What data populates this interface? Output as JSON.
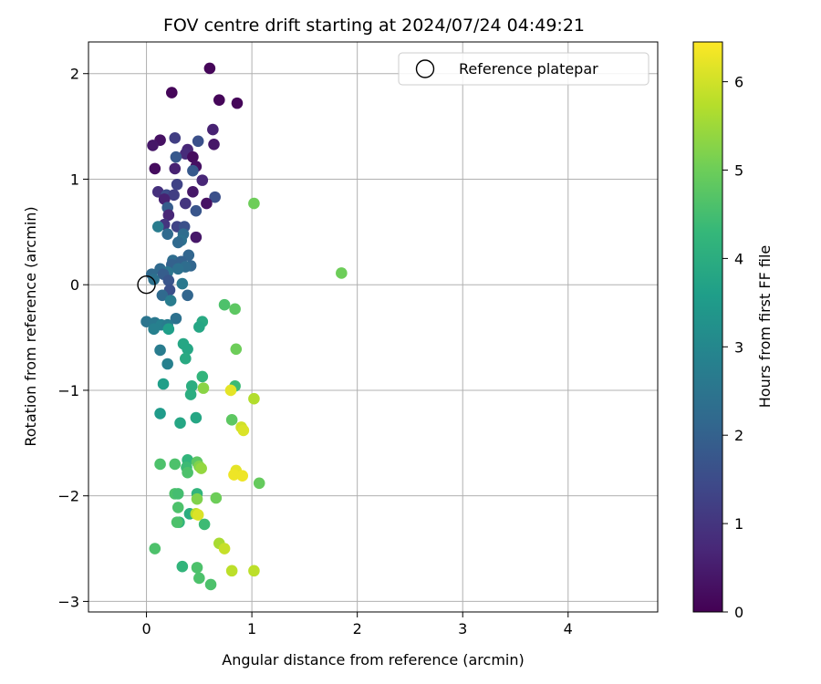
{
  "chart_data": {
    "type": "scatter",
    "title": "FOV centre drift starting at 2024/07/24 04:49:21",
    "xlabel": "Angular distance from reference (arcmin)",
    "ylabel": "Rotation from reference (arcmin)",
    "xlim": [
      -0.55,
      4.85
    ],
    "ylim": [
      -3.1,
      2.3
    ],
    "xticks": [
      0,
      1,
      2,
      3,
      4
    ],
    "yticks": [
      -3,
      -2,
      -1,
      0,
      1,
      2
    ],
    "xtick_labels": [
      "0",
      "1",
      "2",
      "3",
      "4"
    ],
    "ytick_labels": [
      "−3",
      "−2",
      "−1",
      "0",
      "1",
      "2"
    ],
    "grid": true,
    "legend": {
      "position": "top-right",
      "entries": [
        {
          "label": "Reference platepar",
          "marker": "open-circle"
        }
      ]
    },
    "reference_point": [
      0,
      0
    ],
    "colorbar": {
      "label": "Hours from first FF file",
      "range": [
        0,
        6.45
      ],
      "ticks": [
        0,
        1,
        2,
        3,
        4,
        5,
        6
      ],
      "tick_labels": [
        "0",
        "1",
        "2",
        "3",
        "4",
        "5",
        "6"
      ],
      "colormap": "viridis",
      "stops": [
        "#440154",
        "#482878",
        "#3e4989",
        "#31688e",
        "#26828e",
        "#1f9e89",
        "#35b779",
        "#6ece58",
        "#b5de2b",
        "#fde725"
      ]
    },
    "points": [
      {
        "x": 0.6,
        "y": 2.05,
        "h": 0.1
      },
      {
        "x": 0.24,
        "y": 1.82,
        "h": 0.1
      },
      {
        "x": 0.69,
        "y": 1.75,
        "h": 0.1
      },
      {
        "x": 0.86,
        "y": 1.72,
        "h": 0.1
      },
      {
        "x": 0.63,
        "y": 1.47,
        "h": 0.6
      },
      {
        "x": 0.27,
        "y": 1.39,
        "h": 1.2
      },
      {
        "x": 0.13,
        "y": 1.37,
        "h": 0.3
      },
      {
        "x": 0.49,
        "y": 1.36,
        "h": 1.6
      },
      {
        "x": 0.06,
        "y": 1.32,
        "h": 0.4
      },
      {
        "x": 0.64,
        "y": 1.33,
        "h": 0.4
      },
      {
        "x": 0.39,
        "y": 1.28,
        "h": 0.7
      },
      {
        "x": 0.37,
        "y": 1.24,
        "h": 0.8
      },
      {
        "x": 0.28,
        "y": 1.21,
        "h": 1.8
      },
      {
        "x": 0.44,
        "y": 1.21,
        "h": 0.2
      },
      {
        "x": 0.47,
        "y": 1.12,
        "h": 0.3
      },
      {
        "x": 0.08,
        "y": 1.1,
        "h": 0.2
      },
      {
        "x": 0.27,
        "y": 1.1,
        "h": 0.6
      },
      {
        "x": 0.44,
        "y": 1.08,
        "h": 1.8
      },
      {
        "x": 0.53,
        "y": 0.99,
        "h": 0.7
      },
      {
        "x": 0.29,
        "y": 0.95,
        "h": 1.3
      },
      {
        "x": 0.11,
        "y": 0.88,
        "h": 0.9
      },
      {
        "x": 0.19,
        "y": 0.85,
        "h": 1.5
      },
      {
        "x": 0.44,
        "y": 0.88,
        "h": 0.4
      },
      {
        "x": 0.26,
        "y": 0.85,
        "h": 1.2
      },
      {
        "x": 0.65,
        "y": 0.83,
        "h": 1.6
      },
      {
        "x": 0.17,
        "y": 0.81,
        "h": 0.6
      },
      {
        "x": 0.37,
        "y": 0.77,
        "h": 1.0
      },
      {
        "x": 0.57,
        "y": 0.77,
        "h": 0.3
      },
      {
        "x": 0.2,
        "y": 0.73,
        "h": 1.9
      },
      {
        "x": 0.47,
        "y": 0.7,
        "h": 1.7
      },
      {
        "x": 0.21,
        "y": 0.66,
        "h": 0.7
      },
      {
        "x": 0.17,
        "y": 0.57,
        "h": 1.0
      },
      {
        "x": 0.11,
        "y": 0.55,
        "h": 2.7
      },
      {
        "x": 0.29,
        "y": 0.55,
        "h": 1.3
      },
      {
        "x": 0.36,
        "y": 0.55,
        "h": 1.6
      },
      {
        "x": 0.2,
        "y": 0.48,
        "h": 2.2
      },
      {
        "x": 0.35,
        "y": 0.48,
        "h": 2.3
      },
      {
        "x": 0.47,
        "y": 0.45,
        "h": 0.4
      },
      {
        "x": 0.33,
        "y": 0.42,
        "h": 2.4
      },
      {
        "x": 0.3,
        "y": 0.4,
        "h": 2.2
      },
      {
        "x": 0.4,
        "y": 0.28,
        "h": 2.1
      },
      {
        "x": 0.25,
        "y": 0.23,
        "h": 2.3
      },
      {
        "x": 0.33,
        "y": 0.22,
        "h": 2.0
      },
      {
        "x": 0.24,
        "y": 0.19,
        "h": 2.0
      },
      {
        "x": 0.42,
        "y": 0.18,
        "h": 2.1
      },
      {
        "x": 0.37,
        "y": 0.17,
        "h": 2.3
      },
      {
        "x": 0.13,
        "y": 0.15,
        "h": 2.2
      },
      {
        "x": 0.3,
        "y": 0.15,
        "h": 2.4
      },
      {
        "x": 0.2,
        "y": 0.12,
        "h": 2.5
      },
      {
        "x": 0.05,
        "y": 0.1,
        "h": 2.2
      },
      {
        "x": 0.16,
        "y": 0.1,
        "h": 1.9
      },
      {
        "x": 0.07,
        "y": 0.05,
        "h": 2.4
      },
      {
        "x": 0.21,
        "y": 0.04,
        "h": 1.7
      },
      {
        "x": 0.34,
        "y": 0.01,
        "h": 2.6
      },
      {
        "x": 0.22,
        "y": -0.05,
        "h": 1.6
      },
      {
        "x": 0.15,
        "y": -0.1,
        "h": 2.2
      },
      {
        "x": 0.39,
        "y": -0.1,
        "h": 2.1
      },
      {
        "x": 0.23,
        "y": -0.15,
        "h": 2.7
      },
      {
        "x": 0.28,
        "y": -0.32,
        "h": 2.4
      },
      {
        "x": 0.0,
        "y": -0.35,
        "h": 2.5
      },
      {
        "x": 0.08,
        "y": -0.36,
        "h": 2.6
      },
      {
        "x": 0.14,
        "y": -0.38,
        "h": 2.8
      },
      {
        "x": 0.2,
        "y": -0.38,
        "h": 2.7
      },
      {
        "x": 0.07,
        "y": -0.42,
        "h": 2.8
      },
      {
        "x": 0.21,
        "y": -0.42,
        "h": 3.6
      },
      {
        "x": 0.53,
        "y": -0.35,
        "h": 3.9
      },
      {
        "x": 0.5,
        "y": -0.4,
        "h": 3.8
      },
      {
        "x": 0.74,
        "y": -0.19,
        "h": 4.6
      },
      {
        "x": 0.84,
        "y": -0.23,
        "h": 4.8
      },
      {
        "x": 0.13,
        "y": -0.62,
        "h": 2.7
      },
      {
        "x": 0.35,
        "y": -0.56,
        "h": 3.8
      },
      {
        "x": 0.39,
        "y": -0.61,
        "h": 3.8
      },
      {
        "x": 0.85,
        "y": -0.61,
        "h": 5.0
      },
      {
        "x": 0.37,
        "y": -0.7,
        "h": 3.9
      },
      {
        "x": 0.2,
        "y": -0.75,
        "h": 2.8
      },
      {
        "x": 0.53,
        "y": -0.87,
        "h": 4.2
      },
      {
        "x": 0.16,
        "y": -0.94,
        "h": 3.6
      },
      {
        "x": 0.43,
        "y": -0.96,
        "h": 4.0
      },
      {
        "x": 0.54,
        "y": -0.98,
        "h": 5.3
      },
      {
        "x": 0.84,
        "y": -0.96,
        "h": 4.4
      },
      {
        "x": 0.8,
        "y": -1.0,
        "h": 6.2
      },
      {
        "x": 0.42,
        "y": -1.04,
        "h": 4.0
      },
      {
        "x": 1.02,
        "y": -1.08,
        "h": 5.7
      },
      {
        "x": 0.13,
        "y": -1.22,
        "h": 3.5
      },
      {
        "x": 0.47,
        "y": -1.26,
        "h": 3.8
      },
      {
        "x": 0.81,
        "y": -1.28,
        "h": 4.8
      },
      {
        "x": 0.32,
        "y": -1.31,
        "h": 3.8
      },
      {
        "x": 0.9,
        "y": -1.35,
        "h": 6.0
      },
      {
        "x": 0.92,
        "y": -1.38,
        "h": 6.1
      },
      {
        "x": 0.39,
        "y": -1.66,
        "h": 4.2
      },
      {
        "x": 0.48,
        "y": -1.68,
        "h": 4.8
      },
      {
        "x": 0.5,
        "y": -1.72,
        "h": 5.2
      },
      {
        "x": 0.13,
        "y": -1.7,
        "h": 4.6
      },
      {
        "x": 0.27,
        "y": -1.7,
        "h": 4.6
      },
      {
        "x": 0.38,
        "y": -1.73,
        "h": 4.4
      },
      {
        "x": 0.52,
        "y": -1.74,
        "h": 5.4
      },
      {
        "x": 0.85,
        "y": -1.76,
        "h": 6.2
      },
      {
        "x": 0.39,
        "y": -1.78,
        "h": 4.6
      },
      {
        "x": 0.83,
        "y": -1.8,
        "h": 6.3
      },
      {
        "x": 0.91,
        "y": -1.81,
        "h": 6.3
      },
      {
        "x": 1.07,
        "y": -1.88,
        "h": 4.9
      },
      {
        "x": 0.27,
        "y": -1.98,
        "h": 4.6
      },
      {
        "x": 0.3,
        "y": -1.98,
        "h": 4.5
      },
      {
        "x": 0.48,
        "y": -1.98,
        "h": 4.2
      },
      {
        "x": 0.48,
        "y": -2.03,
        "h": 5.2
      },
      {
        "x": 0.66,
        "y": -2.02,
        "h": 5.0
      },
      {
        "x": 0.3,
        "y": -2.11,
        "h": 4.6
      },
      {
        "x": 0.41,
        "y": -2.17,
        "h": 4.0
      },
      {
        "x": 0.47,
        "y": -2.17,
        "h": 5.8
      },
      {
        "x": 0.49,
        "y": -2.18,
        "h": 6.1
      },
      {
        "x": 0.31,
        "y": -2.25,
        "h": 4.2
      },
      {
        "x": 0.29,
        "y": -2.25,
        "h": 4.6
      },
      {
        "x": 0.55,
        "y": -2.27,
        "h": 4.4
      },
      {
        "x": 0.08,
        "y": -2.5,
        "h": 4.6
      },
      {
        "x": 0.69,
        "y": -2.45,
        "h": 5.6
      },
      {
        "x": 0.74,
        "y": -2.5,
        "h": 5.9
      },
      {
        "x": 0.34,
        "y": -2.67,
        "h": 4.2
      },
      {
        "x": 0.48,
        "y": -2.68,
        "h": 4.6
      },
      {
        "x": 0.81,
        "y": -2.71,
        "h": 5.8
      },
      {
        "x": 1.02,
        "y": -2.71,
        "h": 5.8
      },
      {
        "x": 0.5,
        "y": -2.78,
        "h": 4.6
      },
      {
        "x": 0.61,
        "y": -2.84,
        "h": 4.6
      },
      {
        "x": 1.85,
        "y": 0.11,
        "h": 5.0
      },
      {
        "x": 1.02,
        "y": 0.77,
        "h": 5.0
      }
    ]
  }
}
